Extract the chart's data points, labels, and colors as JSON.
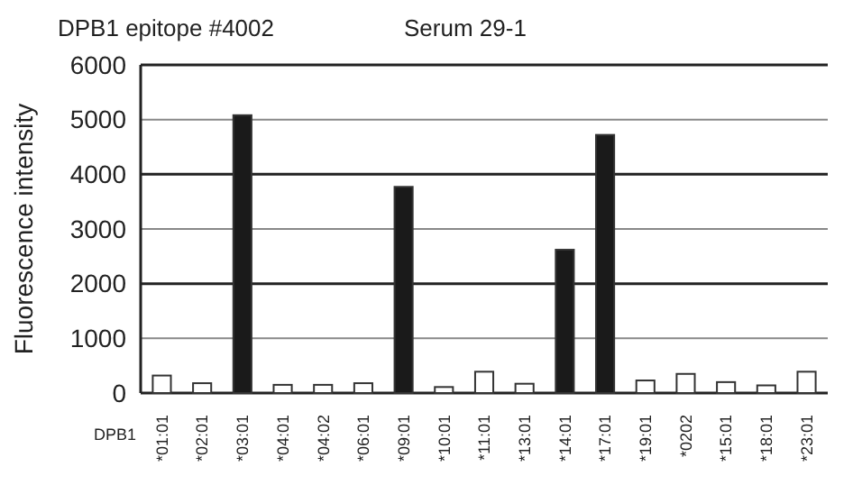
{
  "chart_data": {
    "type": "bar",
    "title": "DPB1 epitope #4002",
    "subtitle": "Serum 29-1",
    "xlabel": "DPB1",
    "ylabel": "Fluorescence intensity",
    "categories": [
      "*01:01",
      "*02:01",
      "*03:01",
      "*04:01",
      "*04:02",
      "*06:01",
      "*09:01",
      "*10:01",
      "*11:01",
      "*13:01",
      "*14:01",
      "*17:01",
      "*19:01",
      "*0202",
      "*15:01",
      "*18:01",
      "*23:01"
    ],
    "values": [
      320,
      180,
      5080,
      150,
      150,
      180,
      3770,
      110,
      390,
      170,
      2620,
      4720,
      230,
      350,
      200,
      140,
      390
    ],
    "colors": [
      "#ffffff",
      "#ffffff",
      "#1a1a1a",
      "#ffffff",
      "#ffffff",
      "#ffffff",
      "#1a1a1a",
      "#ffffff",
      "#ffffff",
      "#ffffff",
      "#1a1a1a",
      "#1a1a1a",
      "#ffffff",
      "#ffffff",
      "#ffffff",
      "#ffffff",
      "#ffffff"
    ],
    "ylim": [
      0,
      6000
    ],
    "yticks": [
      0,
      1000,
      2000,
      3000,
      4000,
      5000,
      6000
    ],
    "grid": true
  }
}
